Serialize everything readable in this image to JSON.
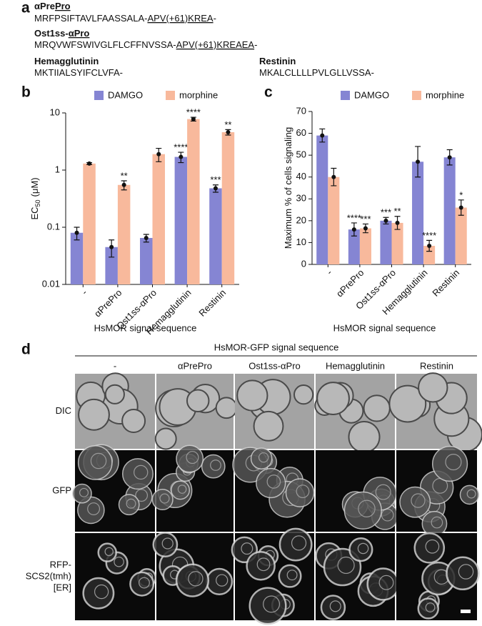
{
  "panel_a": {
    "label": "a",
    "entries": [
      {
        "name": [
          {
            "text": "αPre",
            "underline": false
          },
          {
            "text": "Pro",
            "underline": true
          }
        ],
        "sequence": [
          {
            "text": "MRFPSIFTAVLFAASSALA-",
            "underline": false
          },
          {
            "text": "APV(+61)KREA",
            "underline": true
          },
          {
            "text": "-",
            "underline": false
          }
        ]
      },
      {
        "name": [
          {
            "text": "Ost1ss-",
            "underline": false
          },
          {
            "text": "αPro",
            "underline": true
          }
        ],
        "sequence": [
          {
            "text": "MRQVWFSWIVGLFLCFFNVSSA-",
            "underline": false
          },
          {
            "text": "APV(+61)KREAEA",
            "underline": true
          },
          {
            "text": "-",
            "underline": false
          }
        ]
      },
      {
        "name": [
          {
            "text": "Hemagglutinin",
            "underline": false
          }
        ],
        "sequence": [
          {
            "text": "MKTIIALSYIFCLVFA-",
            "underline": false
          }
        ]
      },
      {
        "name": [
          {
            "text": "Restinin",
            "underline": false
          }
        ],
        "sequence": [
          {
            "text": "MKALCLLLLPVLGLLVSSA-",
            "underline": false
          }
        ]
      }
    ]
  },
  "chart_data": [
    {
      "type": "bar",
      "label": "b",
      "log_scale": true,
      "ylabel": {
        "main": "EC",
        "subscript": "50",
        "rest": "(μM)"
      },
      "xlabel": "HsMOR signal sequence",
      "categories": [
        "-",
        "αPrePro",
        "Ost1ss-αPro",
        "Hemagglutinin",
        "Restinin"
      ],
      "series": [
        {
          "name": "DAMGO",
          "color": "#8585d3",
          "values": [
            0.08,
            0.045,
            0.065,
            1.7,
            0.48
          ],
          "errors": [
            0.02,
            0.015,
            0.01,
            0.35,
            0.07
          ],
          "stars": [
            null,
            null,
            null,
            "****",
            "***"
          ]
        },
        {
          "name": "morphine",
          "color": "#f8b99c",
          "values": [
            1.3,
            0.55,
            1.9,
            7.8,
            4.6
          ],
          "errors": [
            0.05,
            0.1,
            0.5,
            0.6,
            0.5
          ],
          "stars": [
            null,
            "**",
            null,
            "****",
            "**"
          ]
        }
      ],
      "ylim": [
        0.01,
        10
      ],
      "yticks": [
        0.01,
        0.1,
        1,
        10
      ]
    },
    {
      "type": "bar",
      "label": "c",
      "log_scale": false,
      "ylabel": {
        "main": "Maximum % of cells signaling",
        "subscript": null,
        "rest": null
      },
      "xlabel": "HsMOR signal sequence",
      "categories": [
        "-",
        "αPrePro",
        "Ost1ss-αPro",
        "Hemagglutinin",
        "Restinin"
      ],
      "series": [
        {
          "name": "DAMGO",
          "color": "#8585d3",
          "values": [
            59,
            16,
            20,
            47,
            49
          ],
          "errors": [
            3,
            3,
            1.5,
            7,
            3.5
          ],
          "stars": [
            null,
            "****",
            "***",
            null,
            null
          ]
        },
        {
          "name": "morphine",
          "color": "#f8b99c",
          "values": [
            40,
            16.5,
            19,
            8.5,
            26
          ],
          "errors": [
            4,
            2,
            3,
            2.5,
            3.5
          ],
          "stars": [
            null,
            "***",
            "**",
            "****",
            "*"
          ]
        }
      ],
      "ylim": [
        0,
        70
      ],
      "yticks": [
        0,
        10,
        20,
        30,
        40,
        50,
        60,
        70
      ]
    }
  ],
  "panel_d": {
    "label": "d",
    "heading": "HsMOR-GFP signal sequence",
    "columns": [
      "-",
      "αPrePro",
      "Ost1ss-αPro",
      "Hemagglutinin",
      "Restinin"
    ],
    "rows": [
      [
        "DIC"
      ],
      [
        "GFP"
      ],
      [
        "RFP-",
        "SCS2(tmh)",
        "[ER]"
      ]
    ]
  }
}
